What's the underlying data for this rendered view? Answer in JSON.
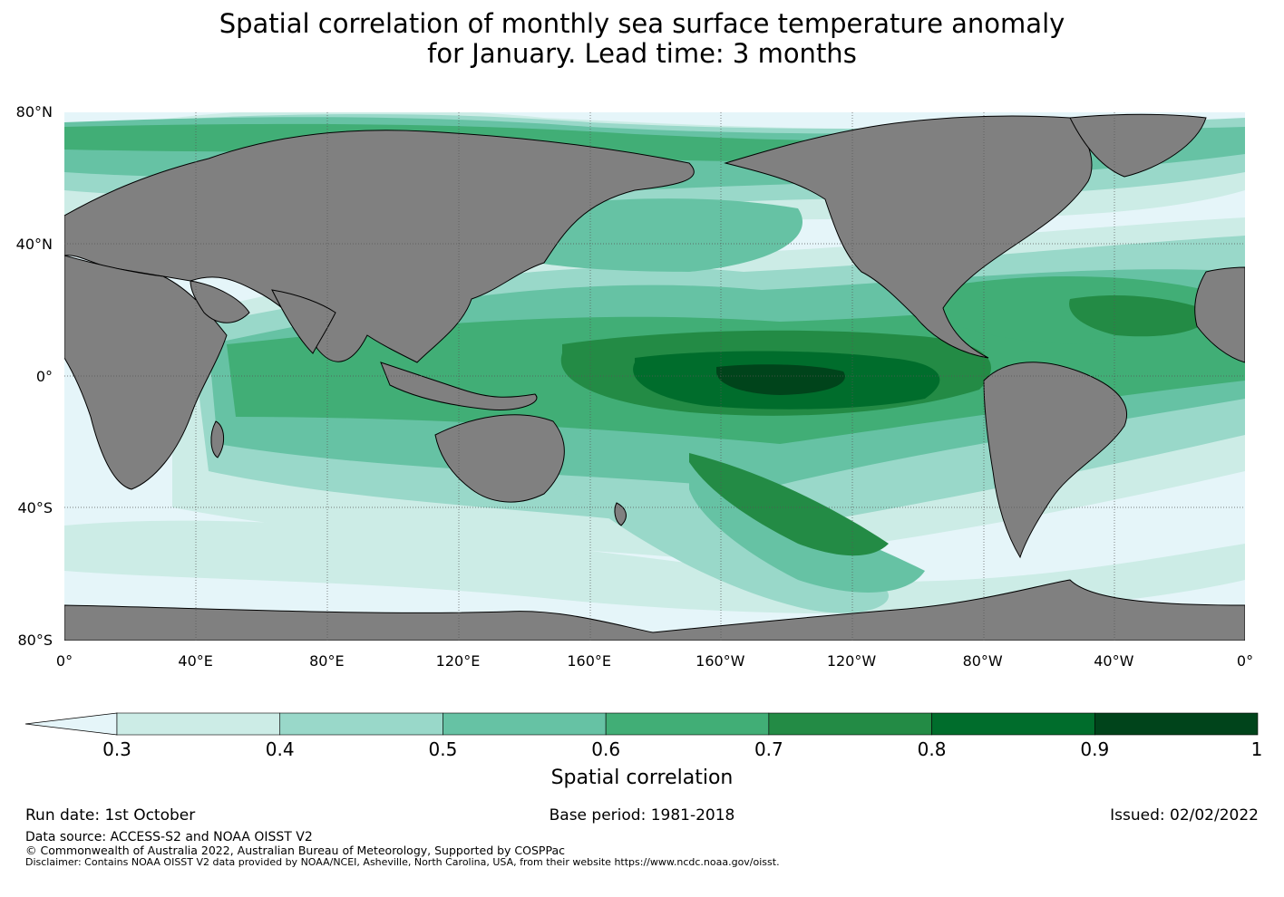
{
  "title": {
    "line1": "Spatial correlation of monthly sea surface temperature anomaly",
    "line2": "for January. Lead time: 3 months"
  },
  "map": {
    "lat_labels": [
      "80°N",
      "40°N",
      "0°",
      "40°S",
      "80°S"
    ],
    "lat_values": [
      80,
      40,
      0,
      -40,
      -80
    ],
    "lon_labels": [
      "0°",
      "40°E",
      "80°E",
      "120°E",
      "160°E",
      "160°W",
      "120°W",
      "80°W",
      "40°W",
      "0°"
    ],
    "lon_values": [
      0,
      40,
      80,
      120,
      160,
      200,
      240,
      280,
      320,
      360
    ],
    "colors": {
      "ocean_below_threshold": "#e5f5f9",
      "land": "#808080",
      "coastline": "#000000",
      "gridline": "#555555"
    }
  },
  "colorbar": {
    "label": "Spatial correlation",
    "extend": "min",
    "ticks": [
      "0.3",
      "0.4",
      "0.5",
      "0.6",
      "0.7",
      "0.8",
      "0.9",
      "1"
    ],
    "tick_values": [
      0.3,
      0.4,
      0.5,
      0.6,
      0.7,
      0.8,
      0.9,
      1.0
    ],
    "below_min_color": "#e5f5f9",
    "bins": [
      {
        "from": 0.3,
        "to": 0.4,
        "color": "#ccece6"
      },
      {
        "from": 0.4,
        "to": 0.5,
        "color": "#99d8c9"
      },
      {
        "from": 0.5,
        "to": 0.6,
        "color": "#66c2a4"
      },
      {
        "from": 0.6,
        "to": 0.7,
        "color": "#41ae76"
      },
      {
        "from": 0.7,
        "to": 0.8,
        "color": "#238b45"
      },
      {
        "from": 0.8,
        "to": 0.9,
        "color": "#006d2c"
      },
      {
        "from": 0.9,
        "to": 1.0,
        "color": "#00441b"
      }
    ]
  },
  "footer": {
    "run_date": "Run date: 1st October",
    "base_period": "Base period: 1981-2018",
    "issued": "Issued: 02/02/2022",
    "data_source": "Data source: ACCESS-S2 and NOAA OISST V2",
    "copyright": "© Commonwealth of Australia 2022, Australian Bureau of Meteorology, Supported by COSPPac",
    "disclaimer": "Disclaimer: Contains NOAA OISST V2 data provided by NOAA/NCEI, Asheville, North Carolina, USA, from their website https://www.ncdc.noaa.gov/oisst."
  }
}
